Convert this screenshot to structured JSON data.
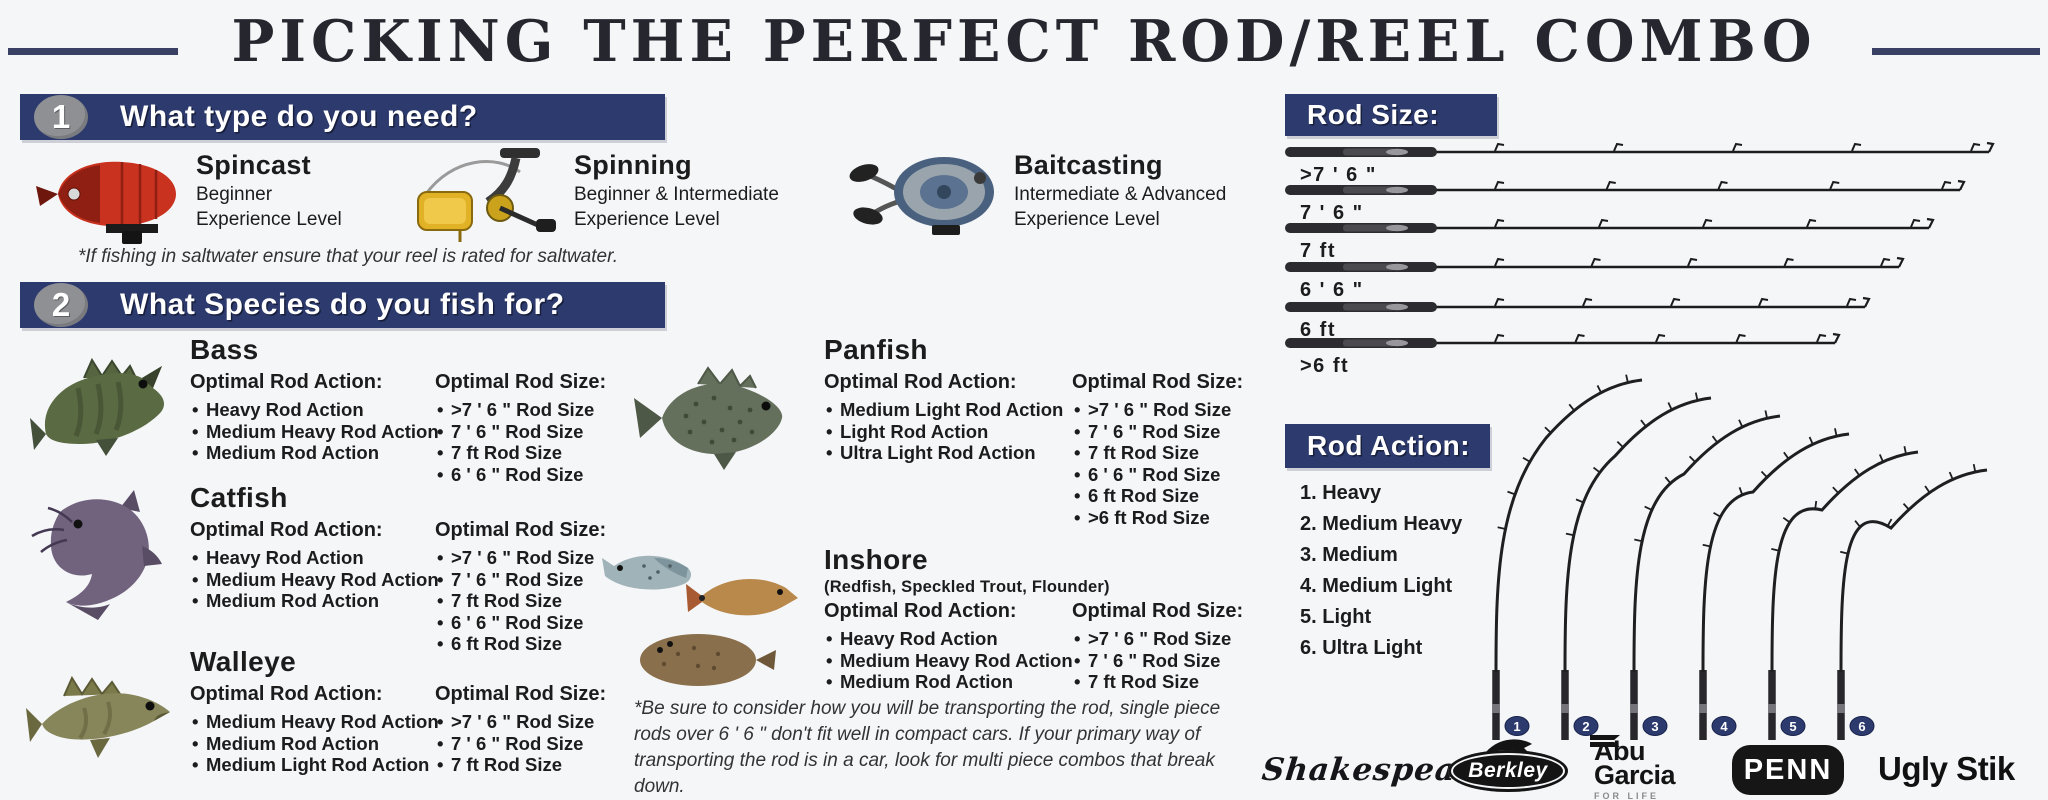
{
  "title": "PICKING THE PERFECT ROD/REEL COMBO",
  "step1": {
    "number": "1",
    "heading": "What type do you need?",
    "reels": [
      {
        "name": "Spincast",
        "line1": "Beginner",
        "line2": "Experience Level"
      },
      {
        "name": "Spinning",
        "line1": "Beginner & Intermediate",
        "line2": "Experience Level"
      },
      {
        "name": "Baitcasting",
        "line1": "Intermediate & Advanced",
        "line2": "Experience Level"
      }
    ],
    "note": "*If fishing in saltwater ensure that your reel is rated for saltwater."
  },
  "step2": {
    "number": "2",
    "heading": "What Species do you fish for?",
    "action_label": "Optimal Rod Action:",
    "size_label": "Optimal Rod Size:",
    "species": [
      {
        "name": "Bass",
        "subtitle": "",
        "actions": [
          "Heavy Rod Action",
          "Medium Heavy Rod Action",
          "Medium Rod Action"
        ],
        "sizes": [
          ">7 ' 6 \" Rod Size",
          "7 ' 6 \" Rod Size",
          "7 ft Rod Size",
          "6 ' 6 \" Rod Size"
        ]
      },
      {
        "name": "Catfish",
        "subtitle": "",
        "actions": [
          "Heavy Rod Action",
          "Medium Heavy Rod Action",
          "Medium Rod Action"
        ],
        "sizes": [
          ">7 ' 6 \" Rod Size",
          "7 ' 6 \" Rod Size",
          "7 ft Rod Size",
          "6 ' 6 \" Rod Size",
          "6 ft Rod Size"
        ]
      },
      {
        "name": "Walleye",
        "subtitle": "",
        "actions": [
          "Medium Heavy Rod Action",
          "Medium Rod Action",
          "Medium Light Rod Action"
        ],
        "sizes": [
          ">7 ' 6 \" Rod Size",
          "7 ' 6 \" Rod Size",
          "7 ft Rod Size"
        ]
      },
      {
        "name": "Panfish",
        "subtitle": "",
        "actions": [
          "Medium Light Rod Action",
          "Light Rod Action",
          "Ultra Light Rod Action"
        ],
        "sizes": [
          ">7 ' 6 \" Rod Size",
          "7 ' 6 \" Rod Size",
          "7 ft Rod Size",
          "6 ' 6 \" Rod Size",
          "6 ft Rod Size",
          ">6 ft Rod Size"
        ]
      },
      {
        "name": "Inshore",
        "subtitle": "(Redfish, Speckled Trout, Flounder)",
        "actions": [
          "Heavy Rod Action",
          "Medium Heavy Rod Action",
          "Medium Rod Action"
        ],
        "sizes": [
          ">7 ' 6 \" Rod Size",
          "7 ' 6 \" Rod Size",
          "7 ft Rod Size"
        ]
      }
    ],
    "note": "*Be sure to consider how you will be transporting the rod, single piece rods over 6 ' 6 \" don't fit well in compact cars. If your primary way of transporting the rod is in a car, look for multi piece combos that break down."
  },
  "rod_size_panel": {
    "heading": "Rod Size:",
    "labels": [
      ">7 ' 6 \"",
      "7 ' 6 \"",
      "7 ft",
      "6 ' 6 \"",
      "6 ft",
      ">6 ft"
    ]
  },
  "rod_action_panel": {
    "heading": "Rod Action:",
    "items": [
      "1. Heavy",
      "2. Medium Heavy",
      "3. Medium",
      "4. Medium Light",
      "5. Light",
      "6. Ultra Light"
    ],
    "curve_numbers": [
      "1",
      "2",
      "3",
      "4",
      "5",
      "6"
    ]
  },
  "brands": {
    "shakespeare": "Shakespeare",
    "berkley": "Berkley",
    "abu_line1": "Abu",
    "abu_line2": "Garcia",
    "abu_sub": "FOR LIFE",
    "penn": "PENN",
    "ugly": "Ugly Stik"
  },
  "colors": {
    "banner_navy": "#2c3a6e",
    "step_circle_gray": "#8e9094",
    "rod_black": "#1c1c1e",
    "spincast_red": "#c8321f",
    "spinning_yellow": "#e2b226",
    "baitcasting_blue": "#49617e"
  }
}
